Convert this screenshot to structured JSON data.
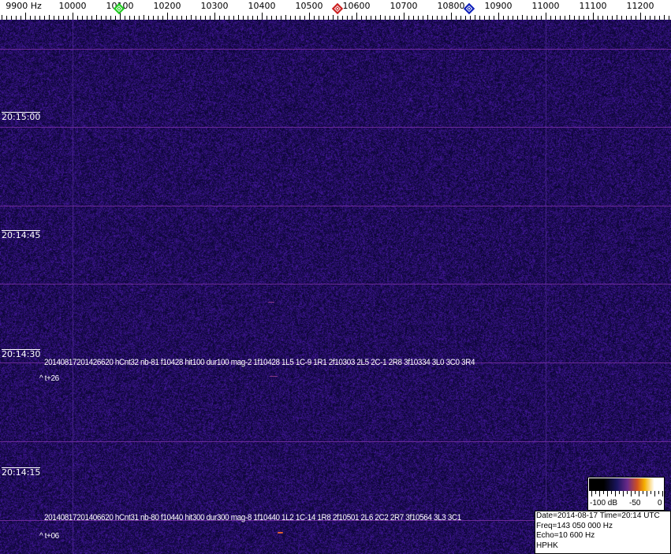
{
  "frequency_axis": {
    "labels": [
      {
        "text": "9900 Hz",
        "hz": 9900
      },
      {
        "text": "10000",
        "hz": 10000
      },
      {
        "text": "10100",
        "hz": 10100
      },
      {
        "text": "10200",
        "hz": 10200
      },
      {
        "text": "10300",
        "hz": 10300
      },
      {
        "text": "10400",
        "hz": 10400
      },
      {
        "text": "10500",
        "hz": 10500
      },
      {
        "text": "10600",
        "hz": 10600
      },
      {
        "text": "10700",
        "hz": 10700
      },
      {
        "text": "10800",
        "hz": 10800
      },
      {
        "text": "10900",
        "hz": 10900
      },
      {
        "text": "11000",
        "hz": 11000
      },
      {
        "text": "11100",
        "hz": 11100
      },
      {
        "text": "11200",
        "hz": 11200
      }
    ],
    "markers": [
      {
        "name": "green-marker",
        "hz": 10098,
        "color": "#22cc22"
      },
      {
        "name": "red-marker",
        "hz": 10560,
        "color": "#cc2222"
      },
      {
        "name": "blue-marker",
        "hz": 10838,
        "color": "#1122bb"
      }
    ]
  },
  "time_labels": [
    "20:15:00",
    "20:14:45",
    "20:14:30",
    "20:14:15"
  ],
  "detections": [
    {
      "text": "20140817201426620 hCnt32 nb-81 f10428 hit100 dur100 mag-2 1f10428 1L5 1C-9 1R1 2f10303 2L5 2C-1 2R8 3f10334 3L0 3C0 3R4",
      "offset": "^ t+26"
    },
    {
      "text": "20140817201406620 hCnt31 nb-80 f10440 hit300 dur300 mag-8 1f10440 1L2 1C-14 1R8 2f10501 2L6 2C2 2R7 3f10564 3L3 3C1",
      "offset": "^ t+06"
    }
  ],
  "color_scale": {
    "labels": [
      "-100 dB",
      "-50",
      "0"
    ]
  },
  "info": {
    "date_time": "Date=2014-08-17 Time=20:14 UTC",
    "freq": "Freq=143 050 000 Hz",
    "echo": "Echo=10 600 Hz",
    "station": "HPHK"
  },
  "colors": {
    "background": "#1d1570",
    "gridline": "#6a2a9a"
  }
}
